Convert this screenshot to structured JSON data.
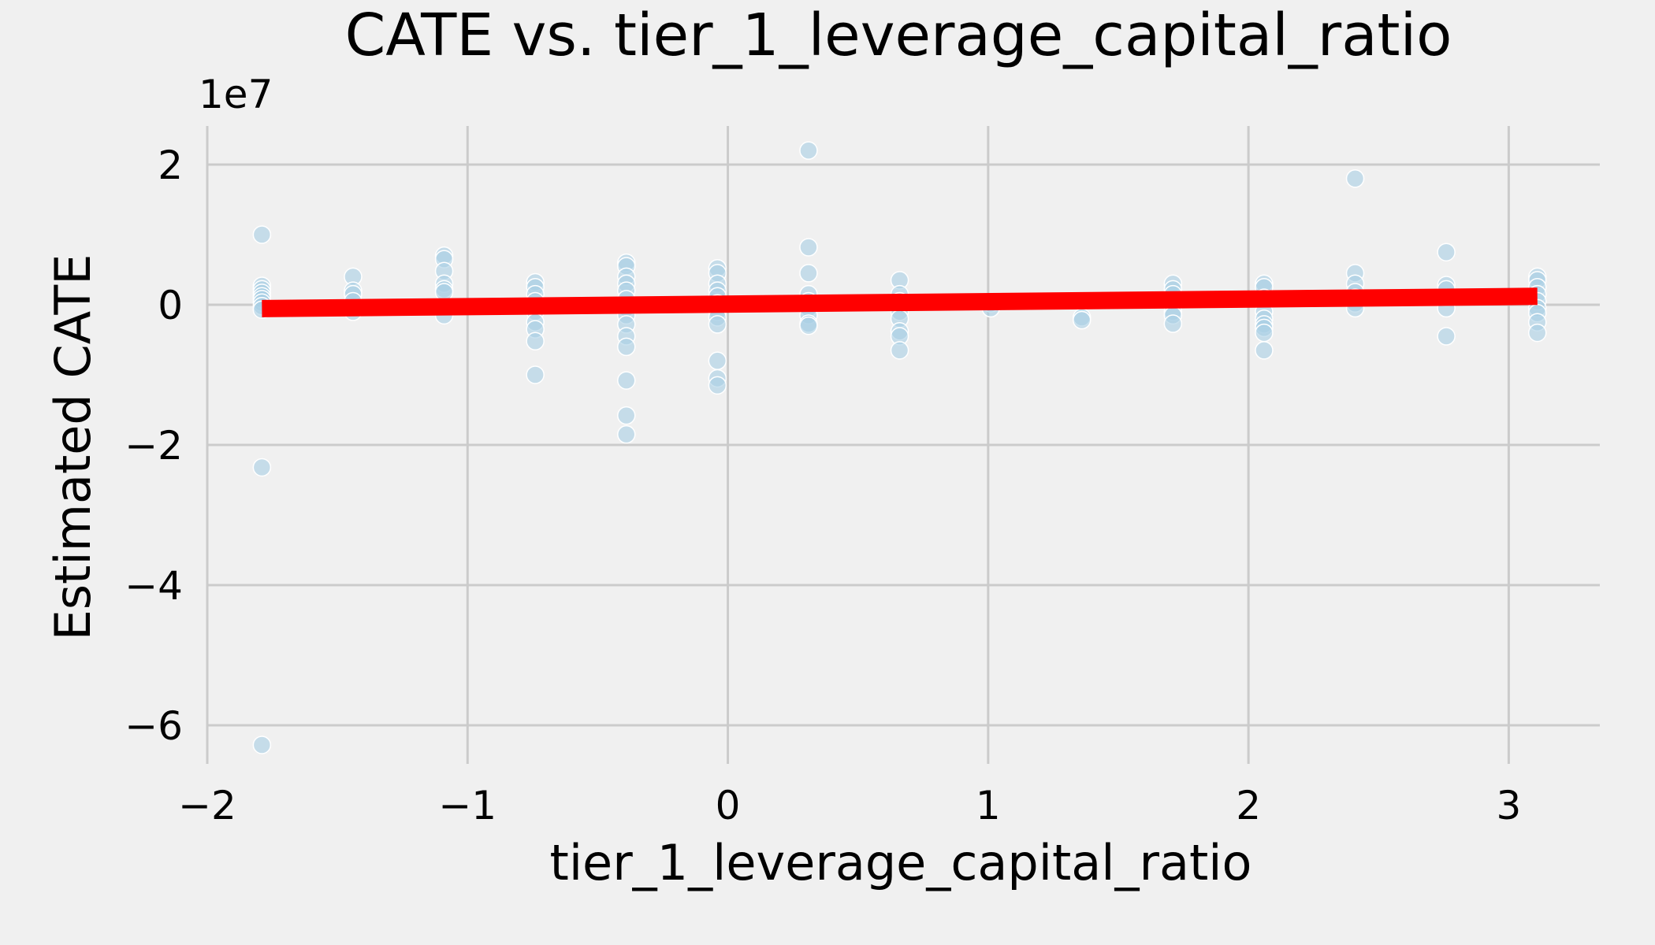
{
  "chart_data": {
    "type": "scatter",
    "title": "CATE vs. tier_1_leverage_capital_ratio",
    "xlabel": "tier_1_leverage_capital_ratio",
    "ylabel": "Estimated CATE",
    "y_offset_label": "1e7",
    "xlim": [
      -2.0,
      3.35
    ],
    "ylim": [
      -6.55,
      2.55
    ],
    "y_unit_scale": 10000000,
    "x_ticks": [
      {
        "value": -2,
        "label": "−2"
      },
      {
        "value": -1,
        "label": "−1"
      },
      {
        "value": 0,
        "label": "0"
      },
      {
        "value": 1,
        "label": "1"
      },
      {
        "value": 2,
        "label": "2"
      },
      {
        "value": 3,
        "label": "3"
      }
    ],
    "y_ticks": [
      {
        "value": 2,
        "label": "2"
      },
      {
        "value": 0,
        "label": "0"
      },
      {
        "value": -2,
        "label": "−2"
      },
      {
        "value": -4,
        "label": "−4"
      },
      {
        "value": -6,
        "label": "−6"
      }
    ],
    "grid": true,
    "colors": {
      "background": "#f0f0f0",
      "points": "#a9cfe4",
      "fit_line": "#ff0000",
      "grid": "#cbcbcb"
    },
    "points": [
      {
        "x": -1.79,
        "y": 1.0
      },
      {
        "x": -1.79,
        "y": 0.27
      },
      {
        "x": -1.79,
        "y": 0.22
      },
      {
        "x": -1.79,
        "y": 0.17
      },
      {
        "x": -1.79,
        "y": 0.12
      },
      {
        "x": -1.79,
        "y": 0.08
      },
      {
        "x": -1.79,
        "y": 0.03
      },
      {
        "x": -1.79,
        "y": -0.02
      },
      {
        "x": -1.79,
        "y": -0.07
      },
      {
        "x": -1.79,
        "y": -2.32
      },
      {
        "x": -1.79,
        "y": -6.28
      },
      {
        "x": -1.44,
        "y": 0.4
      },
      {
        "x": -1.44,
        "y": 0.2
      },
      {
        "x": -1.44,
        "y": 0.15
      },
      {
        "x": -1.44,
        "y": 0.05
      },
      {
        "x": -1.44,
        "y": -0.1
      },
      {
        "x": -1.09,
        "y": 0.7
      },
      {
        "x": -1.09,
        "y": 0.65
      },
      {
        "x": -1.09,
        "y": 0.48
      },
      {
        "x": -1.09,
        "y": 0.3
      },
      {
        "x": -1.09,
        "y": 0.22
      },
      {
        "x": -1.09,
        "y": 0.18
      },
      {
        "x": -1.09,
        "y": -0.15
      },
      {
        "x": -0.74,
        "y": 0.32
      },
      {
        "x": -0.74,
        "y": 0.25
      },
      {
        "x": -0.74,
        "y": 0.15
      },
      {
        "x": -0.74,
        "y": 0.05
      },
      {
        "x": -0.74,
        "y": -0.1
      },
      {
        "x": -0.74,
        "y": -0.25
      },
      {
        "x": -0.74,
        "y": -0.35
      },
      {
        "x": -0.74,
        "y": -0.52
      },
      {
        "x": -0.74,
        "y": -1.0
      },
      {
        "x": -0.39,
        "y": 0.6
      },
      {
        "x": -0.39,
        "y": 0.55
      },
      {
        "x": -0.39,
        "y": 0.4
      },
      {
        "x": -0.39,
        "y": 0.3
      },
      {
        "x": -0.39,
        "y": 0.2
      },
      {
        "x": -0.39,
        "y": 0.08
      },
      {
        "x": -0.39,
        "y": -0.05
      },
      {
        "x": -0.39,
        "y": -0.15
      },
      {
        "x": -0.39,
        "y": -0.28
      },
      {
        "x": -0.39,
        "y": -0.45
      },
      {
        "x": -0.39,
        "y": -0.6
      },
      {
        "x": -0.39,
        "y": -1.08
      },
      {
        "x": -0.39,
        "y": -1.58
      },
      {
        "x": -0.39,
        "y": -1.85
      },
      {
        "x": -0.04,
        "y": 0.52
      },
      {
        "x": -0.04,
        "y": 0.45
      },
      {
        "x": -0.04,
        "y": 0.3
      },
      {
        "x": -0.04,
        "y": 0.2
      },
      {
        "x": -0.04,
        "y": 0.12
      },
      {
        "x": -0.04,
        "y": 0.02
      },
      {
        "x": -0.04,
        "y": -0.1
      },
      {
        "x": -0.04,
        "y": -0.18
      },
      {
        "x": -0.04,
        "y": -0.28
      },
      {
        "x": -0.04,
        "y": -0.8
      },
      {
        "x": -0.04,
        "y": -1.05
      },
      {
        "x": -0.04,
        "y": -1.15
      },
      {
        "x": 0.31,
        "y": 2.2
      },
      {
        "x": 0.31,
        "y": 0.82
      },
      {
        "x": 0.31,
        "y": 0.45
      },
      {
        "x": 0.31,
        "y": 0.15
      },
      {
        "x": 0.31,
        "y": 0.05
      },
      {
        "x": 0.31,
        "y": -0.05
      },
      {
        "x": 0.31,
        "y": -0.15
      },
      {
        "x": 0.31,
        "y": -0.27
      },
      {
        "x": 0.31,
        "y": -0.3
      },
      {
        "x": 0.66,
        "y": 0.35
      },
      {
        "x": 0.66,
        "y": 0.15
      },
      {
        "x": 0.66,
        "y": 0.05
      },
      {
        "x": 0.66,
        "y": -0.1
      },
      {
        "x": 0.66,
        "y": -0.2
      },
      {
        "x": 0.66,
        "y": -0.38
      },
      {
        "x": 0.66,
        "y": -0.45
      },
      {
        "x": 0.66,
        "y": -0.65
      },
      {
        "x": 1.01,
        "y": 0.02
      },
      {
        "x": 1.01,
        "y": -0.05
      },
      {
        "x": 1.36,
        "y": -0.18
      },
      {
        "x": 1.36,
        "y": -0.22
      },
      {
        "x": 1.71,
        "y": 0.3
      },
      {
        "x": 1.71,
        "y": 0.22
      },
      {
        "x": 1.71,
        "y": 0.15
      },
      {
        "x": 1.71,
        "y": 0.05
      },
      {
        "x": 1.71,
        "y": -0.1
      },
      {
        "x": 1.71,
        "y": -0.15
      },
      {
        "x": 1.71,
        "y": -0.27
      },
      {
        "x": 2.06,
        "y": 0.3
      },
      {
        "x": 2.06,
        "y": 0.25
      },
      {
        "x": 2.06,
        "y": 0.1
      },
      {
        "x": 2.06,
        "y": -0.1
      },
      {
        "x": 2.06,
        "y": -0.2
      },
      {
        "x": 2.06,
        "y": -0.28
      },
      {
        "x": 2.06,
        "y": -0.33
      },
      {
        "x": 2.06,
        "y": -0.4
      },
      {
        "x": 2.06,
        "y": -0.65
      },
      {
        "x": 2.41,
        "y": 1.8
      },
      {
        "x": 2.41,
        "y": 0.45
      },
      {
        "x": 2.41,
        "y": 0.3
      },
      {
        "x": 2.41,
        "y": 0.18
      },
      {
        "x": 2.41,
        "y": 0.1
      },
      {
        "x": 2.41,
        "y": 0.02
      },
      {
        "x": 2.41,
        "y": -0.05
      },
      {
        "x": 2.76,
        "y": 0.75
      },
      {
        "x": 2.76,
        "y": 0.28
      },
      {
        "x": 2.76,
        "y": 0.22
      },
      {
        "x": 2.76,
        "y": 0.1
      },
      {
        "x": 2.76,
        "y": -0.05
      },
      {
        "x": 2.76,
        "y": -0.45
      },
      {
        "x": 3.11,
        "y": 0.4
      },
      {
        "x": 3.11,
        "y": 0.35
      },
      {
        "x": 3.11,
        "y": 0.25
      },
      {
        "x": 3.11,
        "y": 0.15
      },
      {
        "x": 3.11,
        "y": 0.05
      },
      {
        "x": 3.11,
        "y": -0.05
      },
      {
        "x": 3.11,
        "y": -0.12
      },
      {
        "x": 3.11,
        "y": -0.25
      },
      {
        "x": 3.11,
        "y": -0.4
      }
    ],
    "fit_line": {
      "x": [
        -1.79,
        3.11
      ],
      "y": [
        -0.055,
        0.12
      ]
    }
  }
}
